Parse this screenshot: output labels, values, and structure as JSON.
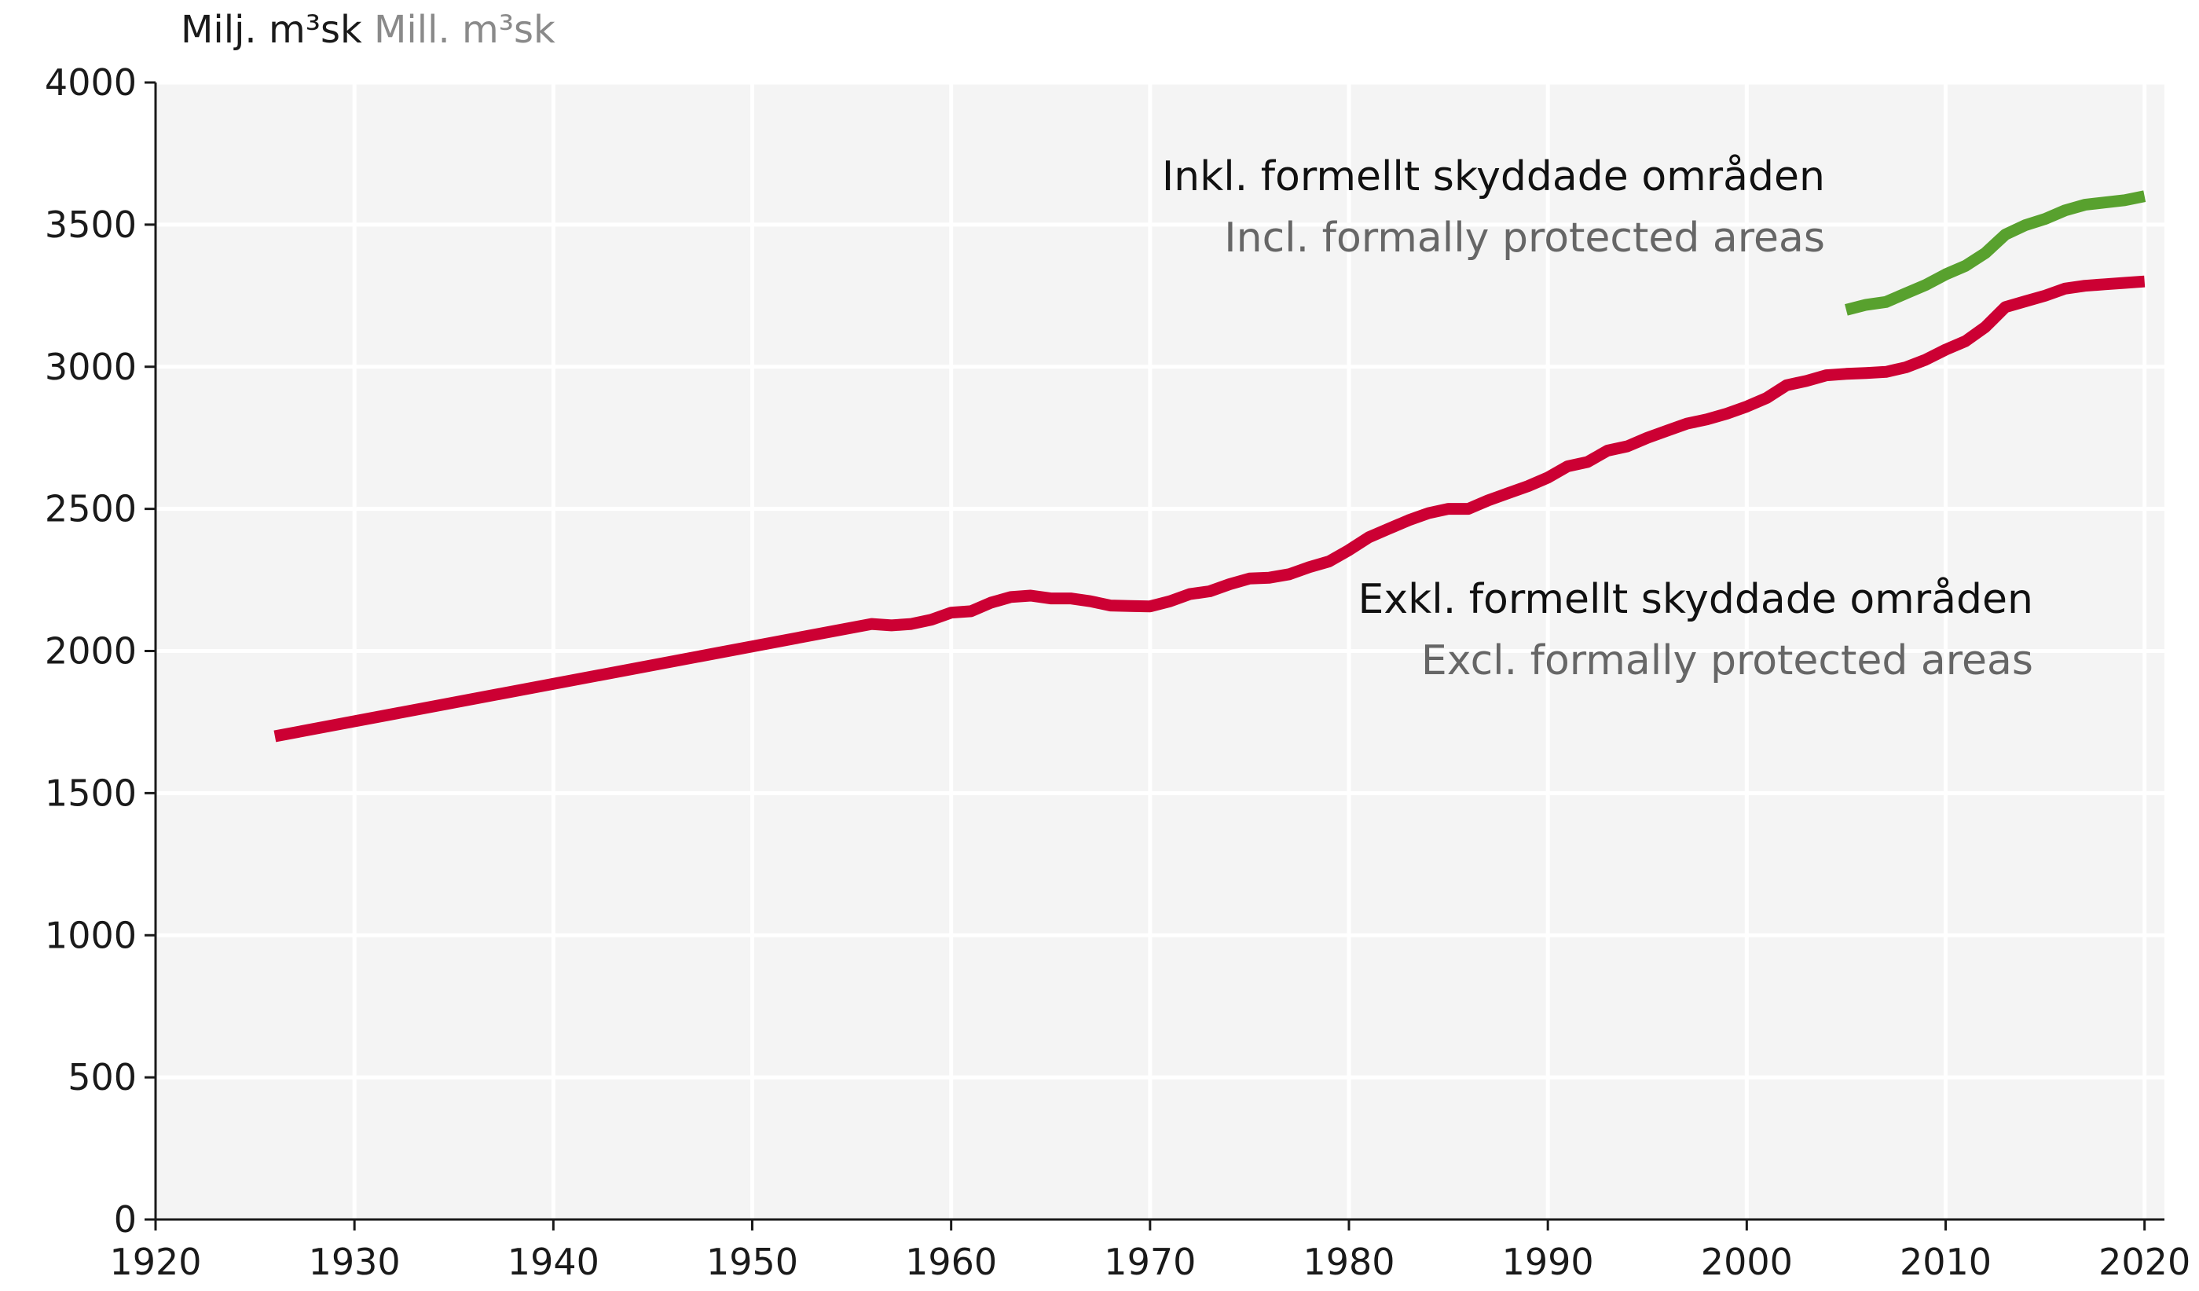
{
  "unit_label": {
    "swedish": "Milj. m³sk",
    "english": "Mill. m³sk"
  },
  "annotations": {
    "incl_swedish": "Inkl. formellt skyddade områden",
    "incl_english": "Incl. formally protected areas",
    "excl_swedish": "Exkl. formellt skyddade områden",
    "excl_english": "Excl. formally protected areas"
  },
  "chart_data": {
    "type": "line",
    "title": "",
    "xlabel": "",
    "ylabel": "Milj. m³sk Mill. m³sk",
    "xlim": [
      1920,
      2021
    ],
    "ylim": [
      0,
      4000
    ],
    "x_ticks": [
      1920,
      1930,
      1940,
      1950,
      1960,
      1970,
      1980,
      1990,
      2000,
      2010,
      2020
    ],
    "y_ticks": [
      0,
      500,
      1000,
      1500,
      2000,
      2500,
      3000,
      3500,
      4000
    ],
    "grid": true,
    "background": "#f4f4f4",
    "series": [
      {
        "name": "Exkl. formellt skyddade områden",
        "color": "#cc0033",
        "x": [
          1926,
          1956,
          1957,
          1958,
          1959,
          1960,
          1961,
          1962,
          1963,
          1964,
          1965,
          1966,
          1967,
          1968,
          1969,
          1970,
          1971,
          1972,
          1973,
          1974,
          1975,
          1976,
          1977,
          1978,
          1979,
          1980,
          1981,
          1982,
          1983,
          1984,
          1985,
          1986,
          1987,
          1988,
          1989,
          1990,
          1991,
          1992,
          1993,
          1994,
          1995,
          1996,
          1997,
          1998,
          1999,
          2000,
          2001,
          2002,
          2003,
          2004,
          2005,
          2006,
          2007,
          2008,
          2009,
          2010,
          2011,
          2012,
          2013,
          2014,
          2015,
          2016,
          2017,
          2018,
          2019,
          2020
        ],
        "y": [
          1700,
          2095,
          2090,
          2095,
          2110,
          2135,
          2140,
          2170,
          2190,
          2195,
          2185,
          2185,
          2175,
          2160,
          2158,
          2157,
          2175,
          2200,
          2210,
          2235,
          2255,
          2258,
          2270,
          2295,
          2315,
          2355,
          2400,
          2430,
          2460,
          2485,
          2500,
          2500,
          2530,
          2555,
          2580,
          2610,
          2650,
          2665,
          2705,
          2720,
          2750,
          2775,
          2800,
          2815,
          2835,
          2860,
          2890,
          2935,
          2950,
          2970,
          2975,
          2978,
          2982,
          2998,
          3025,
          3060,
          3090,
          3140,
          3210,
          3230,
          3250,
          3275,
          3285,
          3290,
          3295,
          3300
        ]
      },
      {
        "name": "Inkl. formellt skyddade områden",
        "color": "#58a12e",
        "x": [
          2005,
          2006,
          2007,
          2008,
          2009,
          2010,
          2011,
          2012,
          2013,
          2014,
          2015,
          2016,
          2017,
          2018,
          2019,
          2020
        ],
        "y": [
          3200,
          3218,
          3228,
          3258,
          3288,
          3325,
          3355,
          3400,
          3465,
          3498,
          3520,
          3550,
          3570,
          3578,
          3586,
          3600
        ]
      }
    ]
  }
}
